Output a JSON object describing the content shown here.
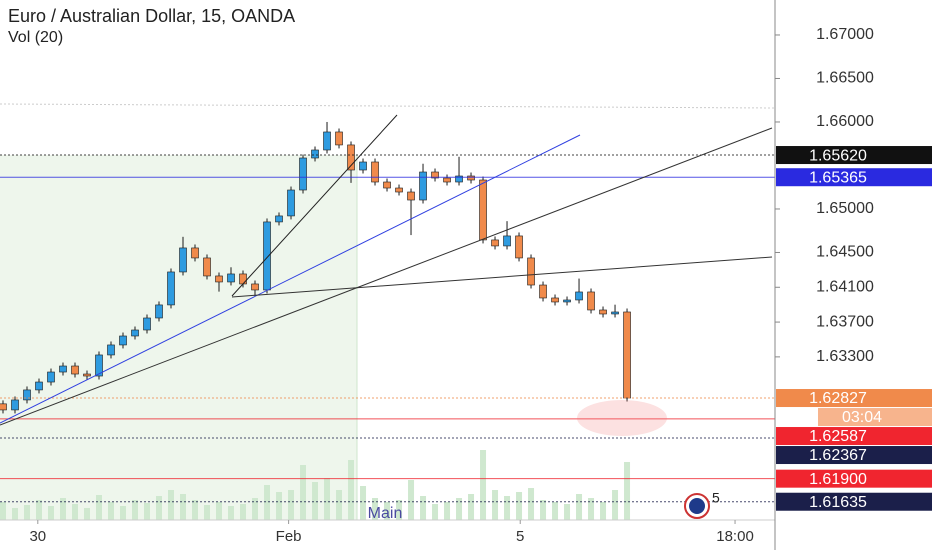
{
  "chart_data": {
    "type": "candlestick",
    "title": "Euro / Australian Dollar, 15, OANDA",
    "subtitle": "Vol (20)",
    "pane_label": "Main",
    "badge": "5",
    "countdown": "03:04",
    "up_color": "#2e9be0",
    "down_color": "#f08a4b",
    "wick_color": "#1a1a1a",
    "volume_color": "#cfe8cf",
    "x": [
      0,
      1,
      2,
      3,
      4,
      5,
      6,
      7,
      8,
      9,
      10,
      11,
      12,
      13,
      14,
      15,
      16,
      17,
      18,
      19,
      20,
      21,
      22,
      23,
      24,
      25,
      26,
      27,
      28,
      29,
      30,
      31,
      32,
      33,
      34,
      35,
      36,
      37,
      38,
      39,
      40,
      41,
      42,
      43,
      44,
      45,
      46,
      47,
      48,
      49,
      50,
      51,
      52
    ],
    "open": [
      1.6276,
      1.6269,
      1.62805,
      1.6292,
      1.63011,
      1.63126,
      1.63195,
      1.63103,
      1.6308,
      1.63322,
      1.63437,
      1.6354,
      1.63609,
      1.63747,
      1.63897,
      1.64276,
      1.64552,
      1.64437,
      1.6423,
      1.64161,
      1.64253,
      1.64138,
      1.64069,
      1.64851,
      1.6492,
      1.65218,
      1.65586,
      1.65678,
      1.65885,
      1.65736,
      1.65448,
      1.6554,
      1.6531,
      1.65241,
      1.65195,
      1.65103,
      1.65425,
      1.65356,
      1.6531,
      1.65379,
      1.65333,
      1.64644,
      1.64575,
      1.6469,
      1.64437,
      1.64126,
      1.63977,
      1.63931,
      1.63954,
      1.64046,
      1.63839,
      1.63793,
      1.63816
    ],
    "high": [
      1.628,
      1.62845,
      1.6296,
      1.63051,
      1.63166,
      1.63235,
      1.63235,
      1.63143,
      1.63362,
      1.63477,
      1.6358,
      1.63649,
      1.63787,
      1.63937,
      1.64316,
      1.6468,
      1.64592,
      1.64477,
      1.6427,
      1.6433,
      1.64293,
      1.64178,
      1.64891,
      1.6496,
      1.65258,
      1.65626,
      1.65718,
      1.66,
      1.65925,
      1.65776,
      1.6558,
      1.6558,
      1.6535,
      1.65281,
      1.65235,
      1.6552,
      1.65465,
      1.65396,
      1.656,
      1.65419,
      1.65373,
      1.64684,
      1.6486,
      1.6473,
      1.64477,
      1.64166,
      1.64017,
      1.63994,
      1.642,
      1.64086,
      1.63879,
      1.639,
      1.63856
    ],
    "low": [
      1.6265,
      1.6265,
      1.62765,
      1.6288,
      1.62971,
      1.63086,
      1.63063,
      1.6304,
      1.6304,
      1.63282,
      1.63397,
      1.635,
      1.63569,
      1.63707,
      1.63857,
      1.64236,
      1.64397,
      1.6419,
      1.6405,
      1.64121,
      1.64098,
      1.64,
      1.64029,
      1.64811,
      1.6488,
      1.65178,
      1.65546,
      1.65638,
      1.65696,
      1.653,
      1.65408,
      1.6527,
      1.65201,
      1.65155,
      1.647,
      1.65063,
      1.65316,
      1.6527,
      1.6527,
      1.65293,
      1.64604,
      1.64535,
      1.64535,
      1.64397,
      1.64086,
      1.63937,
      1.63891,
      1.63891,
      1.63914,
      1.63799,
      1.63753,
      1.63753,
      1.62787
    ],
    "close": [
      1.6269,
      1.62805,
      1.6292,
      1.63011,
      1.63126,
      1.63195,
      1.63103,
      1.6308,
      1.63322,
      1.63437,
      1.6354,
      1.63609,
      1.63747,
      1.63897,
      1.64276,
      1.64552,
      1.64437,
      1.6423,
      1.64161,
      1.64253,
      1.64138,
      1.64069,
      1.64851,
      1.6492,
      1.65218,
      1.65586,
      1.65678,
      1.65885,
      1.65736,
      1.65448,
      1.6554,
      1.6531,
      1.65241,
      1.65195,
      1.65103,
      1.65425,
      1.65356,
      1.6531,
      1.65379,
      1.65333,
      1.64644,
      1.64575,
      1.6469,
      1.64437,
      1.64126,
      1.63977,
      1.63931,
      1.63954,
      1.64046,
      1.63839,
      1.63793,
      1.63816,
      1.62827
    ],
    "volume": [
      18,
      12,
      15,
      20,
      14,
      22,
      16,
      12,
      25,
      18,
      14,
      20,
      17,
      24,
      30,
      26,
      20,
      15,
      18,
      14,
      16,
      22,
      35,
      28,
      30,
      55,
      38,
      42,
      30,
      60,
      34,
      22,
      18,
      20,
      40,
      24,
      16,
      18,
      22,
      26,
      70,
      30,
      24,
      28,
      32,
      20,
      18,
      16,
      26,
      22,
      18,
      30,
      58
    ],
    "vlim": [
      0,
      100
    ],
    "xlim": [
      -0.25,
      64.33
    ],
    "xticks": [
      {
        "value": 2.9,
        "label": "30"
      },
      {
        "value": 23.8,
        "label": "Feb"
      },
      {
        "value": 43.1,
        "label": "5"
      },
      {
        "value": 61,
        "label": "18:00"
      }
    ],
    "ylim": [
      1.61425,
      1.67402
    ],
    "yticks": [
      {
        "value": 1.67,
        "label": "1.67000"
      },
      {
        "value": 1.665,
        "label": "1.66500"
      },
      {
        "value": 1.66,
        "label": "1.66000"
      },
      {
        "value": 1.65,
        "label": "1.65000"
      },
      {
        "value": 1.645,
        "label": "1.64500"
      },
      {
        "value": 1.641,
        "label": "1.64100"
      },
      {
        "value": 1.637,
        "label": "1.63700"
      },
      {
        "value": 1.633,
        "label": "1.63300"
      }
    ],
    "price_labels": [
      {
        "value": 1.6562,
        "label": "1.65620",
        "color": "#111111"
      },
      {
        "value": 1.65365,
        "label": "1.65365",
        "color": "#2a2ae0"
      },
      {
        "value": 1.62827,
        "label": "1.62827",
        "color": "#f08a4b"
      },
      {
        "value": 1.62587,
        "label": "1.62587",
        "color": "#f0252f"
      },
      {
        "value": 1.62367,
        "label": "1.62367",
        "color": "#1b1f4a"
      },
      {
        "value": 1.619,
        "label": "1.61900",
        "color": "#f0252f"
      },
      {
        "value": 1.61635,
        "label": "1.61635",
        "color": "#1b1f4a"
      }
    ]
  }
}
